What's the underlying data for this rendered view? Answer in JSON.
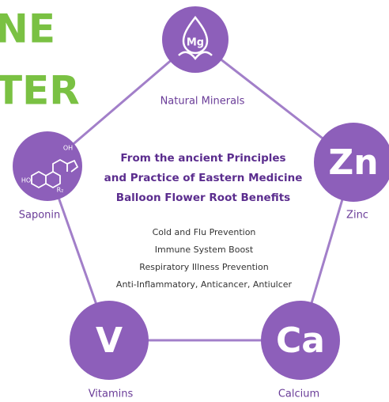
{
  "header": {
    "lines": [
      "NE",
      "TER"
    ]
  },
  "nodes": [
    {
      "symbol": "Mg",
      "label": "Natural Minerals"
    },
    {
      "symbol": "Zn",
      "label": "Zinc"
    },
    {
      "symbol": "Ca",
      "label": "Calcium"
    },
    {
      "symbol": "V",
      "label": "Vitamins"
    },
    {
      "symbol": [
        "OH",
        "HO",
        "R₂"
      ],
      "label": "Saponin"
    }
  ],
  "center": {
    "heading": [
      "From the ancient Principles",
      "and Practice of Eastern Medicine",
      "Balloon Flower Root Benefits"
    ],
    "benefits": [
      "Cold and Flu Prevention",
      "Immune System Boost",
      "Respiratory Illness Prevention",
      "Anti-Inflammatory, Anticancer, Antiulcer"
    ]
  }
}
